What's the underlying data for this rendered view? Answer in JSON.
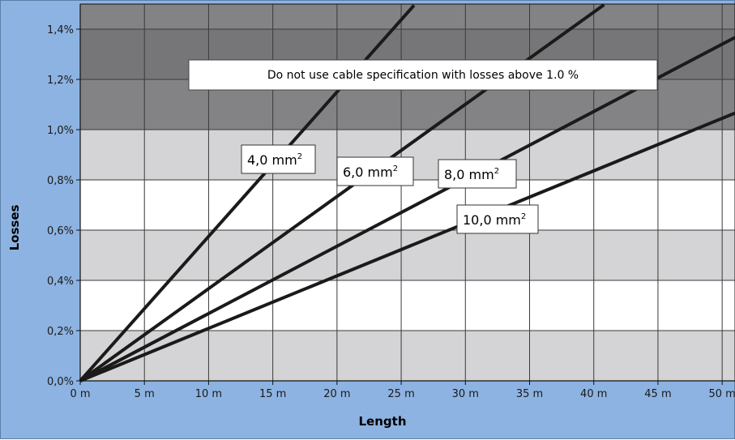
{
  "chart_data": {
    "type": "line",
    "xlabel": "Length",
    "ylabel": "Losses",
    "xlim": [
      0,
      51
    ],
    "ylim": [
      0,
      1.5
    ],
    "x_ticks": [
      0,
      5,
      10,
      15,
      20,
      25,
      30,
      35,
      40,
      45,
      50
    ],
    "x_tick_labels": [
      "0 m",
      "5 m",
      "10 m",
      "15 m",
      "20 m",
      "25 m",
      "30 m",
      "35 m",
      "40 m",
      "45 m",
      "50 m"
    ],
    "y_ticks": [
      0,
      0.2,
      0.4,
      0.6,
      0.8,
      1.0,
      1.2,
      1.4
    ],
    "y_tick_labels": [
      "0,0%",
      "0,2%",
      "0,4%",
      "0,6%",
      "0,8%",
      "1,0%",
      "1,2%",
      "1,4%"
    ],
    "grid": true,
    "annotation": "Do not use cable specification with losses above 1.0 %",
    "forbidden_zone_from": 1.0,
    "series": [
      {
        "name": "4,0 mm",
        "sup": "2",
        "slope": 0.0575,
        "x": [
          0,
          26
        ],
        "y": [
          0,
          1.495
        ]
      },
      {
        "name": "6,0 mm",
        "sup": "2",
        "slope": 0.0367,
        "x": [
          0,
          40.8
        ],
        "y": [
          0,
          1.497
        ]
      },
      {
        "name": "8,0 mm",
        "sup": "2",
        "slope": 0.0268,
        "x": [
          0,
          51
        ],
        "y": [
          0,
          1.367
        ]
      },
      {
        "name": "10,0 mm",
        "sup": "2",
        "slope": 0.0209,
        "x": [
          0,
          51
        ],
        "y": [
          0,
          1.066
        ]
      }
    ],
    "colors": {
      "frame": "#8db3e2",
      "band_light": "#d4d4d6",
      "band_white": "#ffffff",
      "zone_dark": "#838385",
      "zone_darker": "#767678",
      "line": "#1a1a1a"
    }
  }
}
